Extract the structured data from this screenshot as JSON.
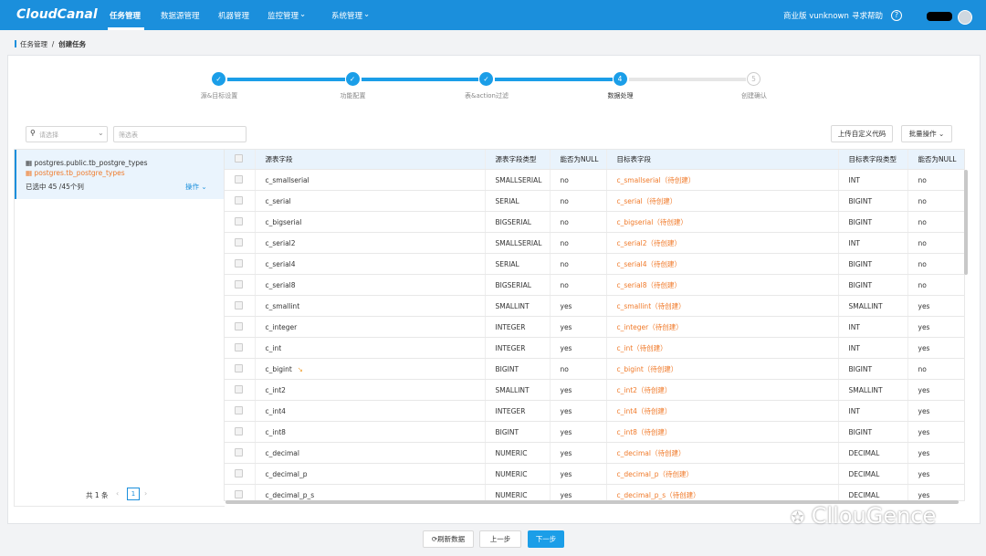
{
  "nav": {
    "logo": "CloudCanal",
    "menu": [
      "任务管理",
      "数据源管理",
      "机器管理",
      "监控管理",
      "系统管理"
    ],
    "edition": "商业版 vunknown",
    "help": "寻求帮助"
  },
  "breadcrumb": [
    "任务管理",
    "创建任务"
  ],
  "steps": [
    {
      "label": "源&目标设置"
    },
    {
      "label": "功能配置"
    },
    {
      "label": "表&action过滤"
    },
    {
      "number": "4",
      "label": "数据处理"
    },
    {
      "number": "5",
      "label": "创建确认"
    }
  ],
  "toolbar": {
    "select_placeholder": "请选择",
    "filter_placeholder": "筛选表",
    "upload_button": "上传自定义代码",
    "batch_button": "批量操作"
  },
  "left_panel": {
    "source_table": "postgres.public.tb_postgre_types",
    "target_table": "postgres.tb_postgre_types",
    "selected": "已选中 45 /45个列",
    "action": "操作",
    "total": "共 1 条",
    "page": "1"
  },
  "table": {
    "headers": [
      "源表字段",
      "源表字段类型",
      "能否为NULL",
      "目标表字段",
      "目标表字段类型",
      "能否为NULL"
    ],
    "rows": [
      [
        "c_smallserial",
        "SMALLSERIAL",
        "no",
        "c_smallserial（待创建）",
        "INT",
        "no"
      ],
      [
        "c_serial",
        "SERIAL",
        "no",
        "c_serial（待创建）",
        "BIGINT",
        "no"
      ],
      [
        "c_bigserial",
        "BIGSERIAL",
        "no",
        "c_bigserial（待创建）",
        "BIGINT",
        "no"
      ],
      [
        "c_serial2",
        "SMALLSERIAL",
        "no",
        "c_serial2（待创建）",
        "INT",
        "no"
      ],
      [
        "c_serial4",
        "SERIAL",
        "no",
        "c_serial4（待创建）",
        "BIGINT",
        "no"
      ],
      [
        "c_serial8",
        "BIGSERIAL",
        "no",
        "c_serial8（待创建）",
        "BIGINT",
        "no"
      ],
      [
        "c_smallint",
        "SMALLINT",
        "yes",
        "c_smallint（待创建）",
        "SMALLINT",
        "yes"
      ],
      [
        "c_integer",
        "INTEGER",
        "yes",
        "c_integer（待创建）",
        "INT",
        "yes"
      ],
      [
        "c_int",
        "INTEGER",
        "yes",
        "c_int（待创建）",
        "INT",
        "yes"
      ],
      [
        "c_bigint",
        "BIGINT",
        "no",
        "c_bigint（待创建）",
        "BIGINT",
        "no"
      ],
      [
        "c_int2",
        "SMALLINT",
        "yes",
        "c_int2（待创建）",
        "SMALLINT",
        "yes"
      ],
      [
        "c_int4",
        "INTEGER",
        "yes",
        "c_int4（待创建）",
        "INT",
        "yes"
      ],
      [
        "c_int8",
        "BIGINT",
        "yes",
        "c_int8（待创建）",
        "BIGINT",
        "yes"
      ],
      [
        "c_decimal",
        "NUMERIC",
        "yes",
        "c_decimal（待创建）",
        "DECIMAL",
        "yes"
      ],
      [
        "c_decimal_p",
        "NUMERIC",
        "yes",
        "c_decimal_p（待创建）",
        "DECIMAL",
        "yes"
      ],
      [
        "c_decimal_p_s",
        "NUMERIC",
        "yes",
        "c_decimal_p_s（待创建）",
        "DECIMAL",
        "yes"
      ]
    ]
  },
  "footer": {
    "refresh": "刷新数据",
    "prev": "上一步",
    "next": "下一步"
  },
  "watermark": "CllouGence"
}
